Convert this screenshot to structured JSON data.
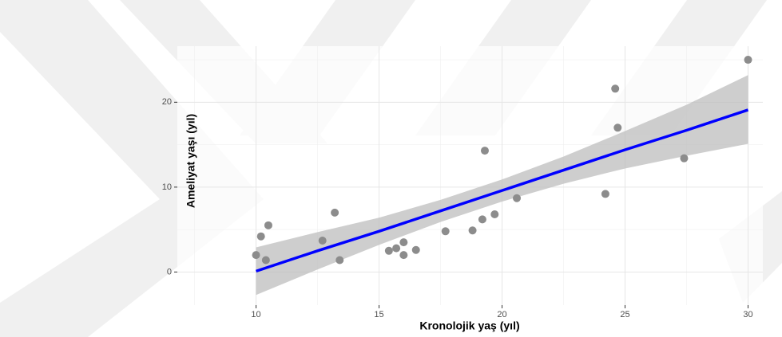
{
  "chart_data": {
    "type": "scatter",
    "x_label": "Kronolojik yaş (yıl)",
    "y_label": "Ameliyat yaşı (yıl)",
    "xlim": [
      6.8,
      30.6
    ],
    "ylim": [
      -3.9,
      26.6
    ],
    "xticks": [
      10,
      15,
      20,
      25,
      30
    ],
    "yticks": [
      0,
      10,
      20
    ],
    "minor_xticks": [
      7.5,
      12.5,
      17.5,
      22.5,
      27.5
    ],
    "minor_yticks": [
      5,
      15,
      25
    ],
    "grid": true,
    "points": {
      "color": "#8c8c8c",
      "x": [
        10.0,
        10.2,
        10.4,
        10.5,
        12.7,
        13.2,
        13.4,
        15.4,
        15.7,
        16.0,
        16.0,
        16.5,
        17.7,
        18.8,
        19.2,
        19.3,
        19.7,
        20.6,
        24.2,
        24.6,
        24.7,
        27.4,
        30.0
      ],
      "y": [
        2.0,
        4.2,
        1.4,
        5.5,
        3.7,
        7.0,
        1.4,
        2.5,
        2.8,
        3.5,
        2.0,
        2.6,
        4.8,
        4.9,
        6.2,
        14.3,
        6.8,
        8.7,
        9.2,
        21.6,
        17.0,
        13.4,
        25.0
      ]
    },
    "fit": {
      "color": "#0000ff",
      "band_color": "#bdbdbd",
      "x": [
        10,
        12.5,
        15,
        17.5,
        20,
        22.5,
        25,
        27.5,
        30
      ],
      "y": [
        0.1,
        2.5,
        4.8,
        7.2,
        9.6,
        12.0,
        14.4,
        16.7,
        19.1
      ],
      "lower": [
        -2.7,
        0.3,
        3.2,
        5.9,
        8.3,
        10.4,
        12.2,
        13.7,
        15.1
      ],
      "upper": [
        2.9,
        4.7,
        6.4,
        8.5,
        10.9,
        13.6,
        16.6,
        19.7,
        23.2
      ]
    }
  }
}
